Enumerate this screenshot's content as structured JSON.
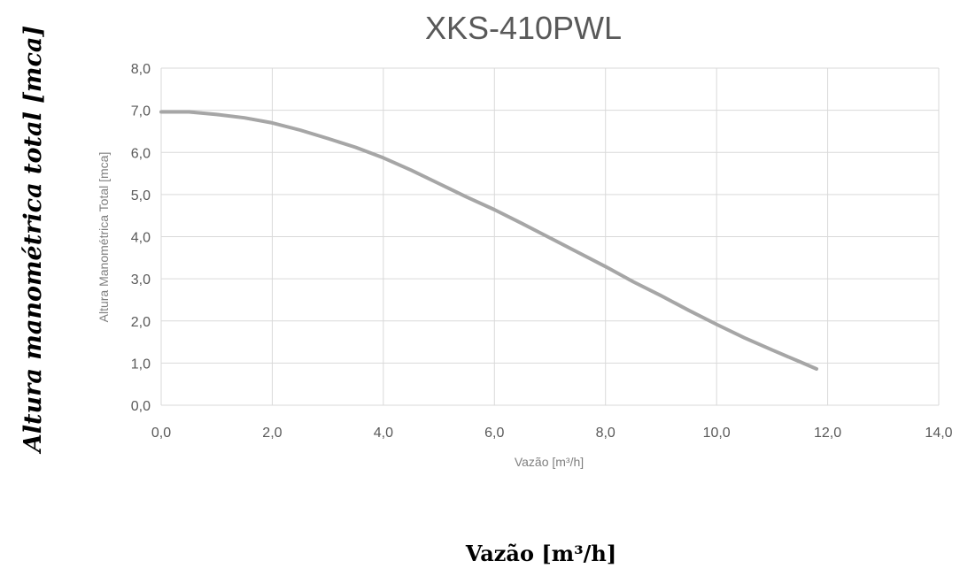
{
  "chart_data": {
    "type": "line",
    "title": "XKS-410PWL",
    "xlabel": "Vazão [m³/h]",
    "ylabel": "Altura Manométrica Total [mca]",
    "outer_ylabel": "Altura manométrica total [mca]",
    "outer_xlabel": "Vazão [m³/h]",
    "xlim": [
      0,
      14
    ],
    "ylim": [
      0,
      8
    ],
    "grid": true,
    "legend": "none",
    "x_ticks": [
      "0,0",
      "2,0",
      "4,0",
      "6,0",
      "8,0",
      "10,0",
      "12,0",
      "14,0"
    ],
    "y_ticks": [
      "0,0",
      "1,0",
      "2,0",
      "3,0",
      "4,0",
      "5,0",
      "6,0",
      "7,0",
      "8,0"
    ],
    "series": [
      {
        "x": [
          0,
          0.5,
          1.0,
          1.5,
          2.0,
          2.5,
          3.0,
          3.5,
          4.0,
          4.5,
          5.0,
          5.5,
          6.0,
          6.5,
          7.0,
          7.5,
          8.0,
          8.5,
          9.0,
          9.5,
          10.0,
          10.5,
          11.0,
          11.5,
          11.8
        ],
        "values": [
          6.96,
          6.96,
          6.9,
          6.82,
          6.7,
          6.53,
          6.33,
          6.12,
          5.87,
          5.58,
          5.26,
          4.94,
          4.64,
          4.31,
          3.97,
          3.63,
          3.29,
          2.93,
          2.6,
          2.25,
          1.92,
          1.6,
          1.31,
          1.03,
          0.86
        ],
        "color": "#a6a6a6"
      }
    ]
  }
}
